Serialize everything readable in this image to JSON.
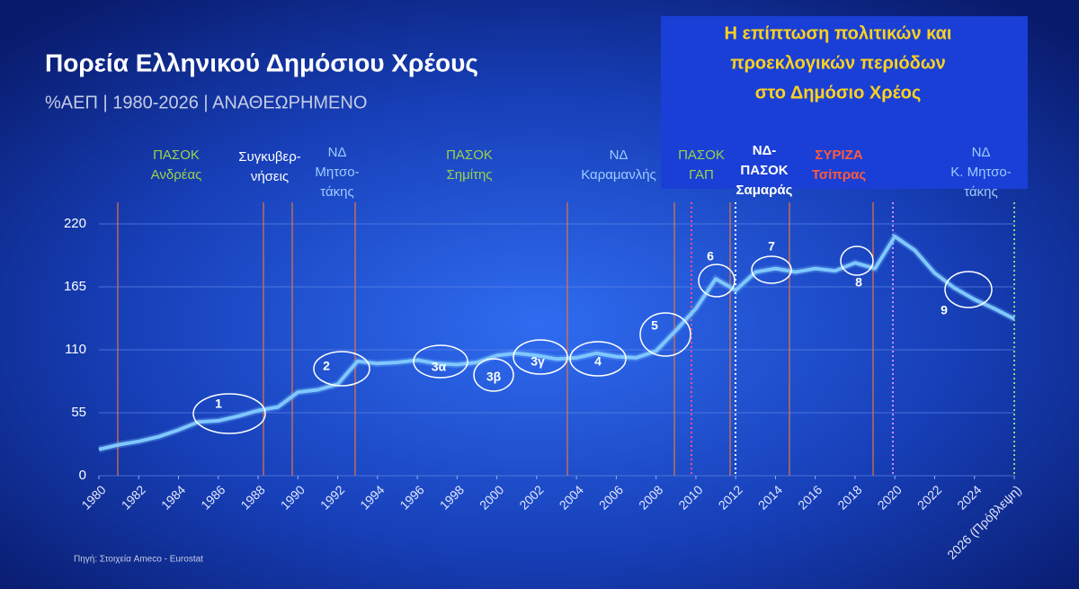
{
  "chart_data": {
    "type": "line",
    "title": "Πορεία Ελληνικού Δημόσιου Χρέους",
    "subtitle": "%ΑΕΠ | 1980-2026 | ΑΝΑΘΕΩΡΗΜΕΝΟ",
    "box_title": [
      "Η επίπτωση πολιτικών και",
      "προεκλογικών περιόδων",
      "στο Δημόσιο Χρέος"
    ],
    "source": "Πηγή: Στοιχεία Ameco - Eurostat",
    "x": [
      1980,
      1981,
      1982,
      1983,
      1984,
      1985,
      1986,
      1987,
      1988,
      1989,
      1990,
      1991,
      1992,
      1993,
      1994,
      1995,
      1996,
      1997,
      1998,
      1999,
      2000,
      2001,
      2002,
      2003,
      2004,
      2005,
      2006,
      2007,
      2008,
      2009,
      2010,
      2011,
      2012,
      2013,
      2014,
      2015,
      2016,
      2017,
      2018,
      2019,
      2020,
      2021,
      2022,
      2023,
      2024,
      2025,
      2026
    ],
    "values": [
      23,
      27,
      30,
      34,
      40,
      47,
      48,
      52,
      57,
      60,
      73,
      75,
      80,
      100,
      98,
      99,
      101,
      98,
      97,
      99,
      105,
      107,
      105,
      102,
      103,
      107,
      104,
      103,
      109,
      127,
      146,
      172,
      162,
      178,
      181,
      178,
      181,
      179,
      186,
      181,
      209,
      197,
      177,
      164,
      154,
      146,
      137
    ],
    "color": "#7fc8ff",
    "xlim": [
      1980,
      2026
    ],
    "xticks": [
      1980,
      1982,
      1984,
      1986,
      1988,
      1990,
      1992,
      1994,
      1996,
      1998,
      2000,
      2002,
      2004,
      2006,
      2008,
      2010,
      2012,
      2014,
      2016,
      2018,
      2020,
      2022,
      2024,
      {
        "value": 2026,
        "label": "2026 (Πρόβλεψη)"
      }
    ],
    "ylim": [
      0,
      220
    ],
    "yticks": [
      0,
      55,
      110,
      165,
      220
    ],
    "grid": true,
    "periods": [
      {
        "lines": [
          "ΠΑΣΟΚ",
          "Ανδρέας"
        ],
        "color": "#9bd34a"
      },
      {
        "lines": [
          "Συγκυβερ-",
          "νήσεις"
        ],
        "color": "#ffffff"
      },
      {
        "lines": [
          "ΝΔ",
          "Μητσο-",
          "τάκης"
        ],
        "color": "#9ecbff"
      },
      {
        "lines": [
          "ΠΑΣΟΚ",
          "Σημίτης"
        ],
        "color": "#9bd34a"
      },
      {
        "lines": [
          "ΝΔ",
          "Καραμανλής"
        ],
        "color": "#9ecbff"
      },
      {
        "lines": [
          "ΠΑΣΟΚ",
          "ΓΑΠ"
        ],
        "color": "#9bd34a"
      },
      {
        "lines": [
          "ΝΔ-",
          "ΠΑΣΟΚ",
          "Σαμαράς"
        ],
        "color": "#ffffff"
      },
      {
        "lines": [
          "ΣΥΡΙΖΑ",
          "Τσίπρας"
        ],
        "color": "#ff5a3c"
      },
      {
        "lines": [
          "ΝΔ",
          "Κ. Μητσο-",
          "τάκης"
        ],
        "color": "#9ecbff"
      }
    ],
    "annotations": [
      "1",
      "2",
      "3α",
      "3β",
      "3γ",
      "4",
      "5",
      "6",
      "7",
      "8",
      "9"
    ]
  }
}
